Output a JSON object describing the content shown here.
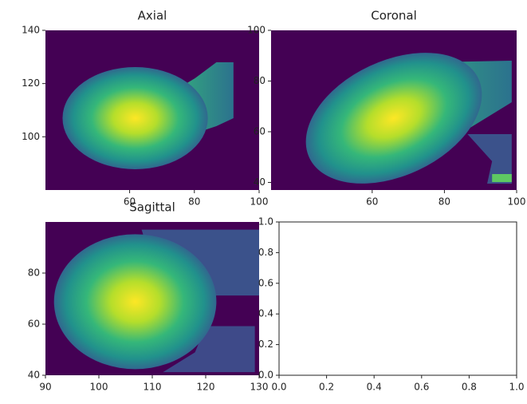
{
  "chart_data": [
    {
      "type": "image",
      "title": "Axial",
      "xlim": [
        34,
        100
      ],
      "ylim": [
        80,
        140
      ],
      "xticks": [
        60,
        80,
        100
      ],
      "yticks": [
        100,
        120,
        140
      ]
    },
    {
      "type": "image",
      "title": "Coronal",
      "xlim": [
        32,
        100
      ],
      "ylim": [
        37,
        100
      ],
      "xticks": [
        60,
        80,
        100
      ],
      "yticks": [
        40,
        60,
        80,
        100
      ]
    },
    {
      "type": "image",
      "title": "Sagittal",
      "xlim": [
        90,
        130
      ],
      "ylim": [
        40,
        100
      ],
      "xticks": [
        90,
        100,
        110,
        120,
        130
      ],
      "yticks": [
        40,
        60,
        80
      ]
    },
    {
      "type": "empty",
      "xlim": [
        0,
        1
      ],
      "ylim": [
        0,
        1
      ],
      "xticks": [
        {
          "value": 0,
          "label": "0.0"
        },
        {
          "value": 0.2,
          "label": "0.2"
        },
        {
          "value": 0.4,
          "label": "0.4"
        },
        {
          "value": 0.6,
          "label": "0.6"
        },
        {
          "value": 0.8,
          "label": "0.8"
        },
        {
          "value": 1,
          "label": "1.0"
        }
      ],
      "yticks": [
        {
          "value": 0,
          "label": "0.0"
        },
        {
          "value": 0.2,
          "label": "0.2"
        },
        {
          "value": 0.4,
          "label": "0.4"
        },
        {
          "value": 0.6,
          "label": "0.6"
        },
        {
          "value": 0.8,
          "label": "0.8"
        },
        {
          "value": 1,
          "label": "1.0"
        }
      ]
    }
  ]
}
